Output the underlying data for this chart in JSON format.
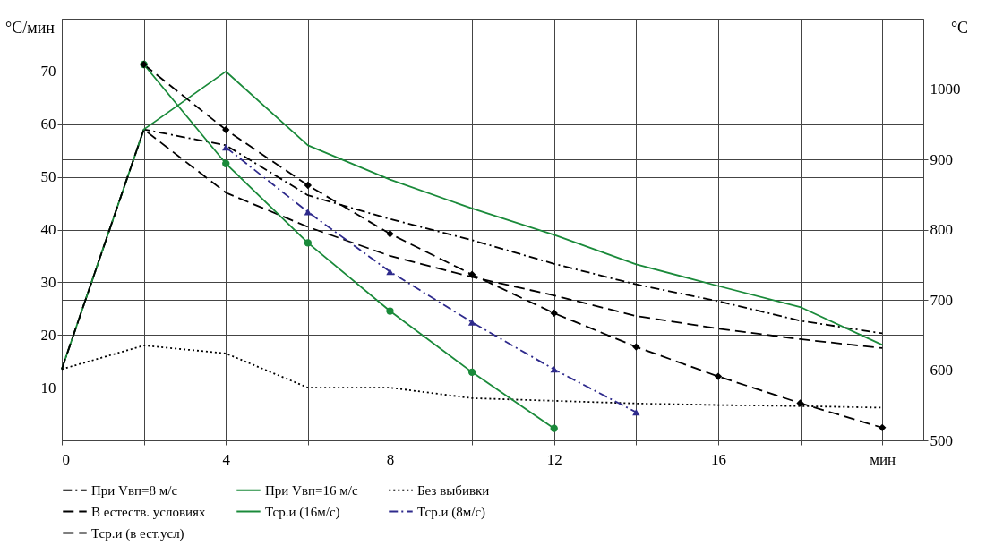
{
  "chart_data": {
    "type": "line",
    "ylabel": "°C/мин",
    "y2label": "°C",
    "xlim": [
      0,
      21
    ],
    "xticks": [
      0,
      {
        "value": 2,
        "label": null
      },
      4,
      {
        "value": 6,
        "label": null
      },
      8,
      {
        "value": 10,
        "label": null
      },
      12,
      {
        "value": 14,
        "label": null
      },
      16,
      {
        "value": 18,
        "label": null
      },
      {
        "value": 20,
        "label": "мин"
      }
    ],
    "ylim": [
      0,
      80
    ],
    "yticks": [
      10,
      20,
      30,
      40,
      50,
      60,
      70
    ],
    "y2lim": [
      500,
      1100
    ],
    "y2ticks": [
      500,
      600,
      700,
      800,
      900,
      1000
    ],
    "grid": true,
    "legend": "bottom",
    "series": [
      {
        "name": "При Vвп=8 м/с",
        "color": "#000000",
        "line_style": "dashdot",
        "x": [
          0,
          2,
          4,
          6,
          8,
          10,
          12,
          14,
          16,
          18,
          20
        ],
        "values": [
          13.5,
          59,
          56,
          46.5,
          42,
          38,
          33.5,
          29.6,
          26.4,
          22.7,
          20.3
        ]
      },
      {
        "name": "При Vвп=16 м/с",
        "color": "#1a8a3a",
        "line_style": "solid",
        "x": [
          0,
          2,
          4,
          6,
          8,
          10,
          12,
          14,
          16,
          18,
          20
        ],
        "values": [
          13.5,
          59,
          70,
          56,
          49.5,
          44,
          39,
          33.4,
          29.3,
          25.3,
          18.1
        ]
      },
      {
        "name": "Без выбивки",
        "color": "#000000",
        "line_style": "dotted",
        "x": [
          0,
          2,
          4,
          6,
          8,
          10,
          12,
          14,
          16,
          18,
          20
        ],
        "values": [
          13.5,
          18,
          16.5,
          10,
          10,
          8,
          7.5,
          7,
          6.7,
          6.5,
          6.2
        ]
      },
      {
        "name": "В естеств. условиях",
        "color": "#000000",
        "line_style": "dashed",
        "x": [
          0,
          2,
          4,
          6,
          8,
          10,
          12,
          14,
          16,
          18,
          20
        ],
        "values": [
          13.5,
          59,
          47,
          40.5,
          35,
          31,
          27.5,
          23.6,
          21.2,
          19.2,
          17.5
        ]
      },
      {
        "name": "Тср.и (16м/с)",
        "color": "#1a8a3a",
        "line_style": "solid",
        "marker": "circle",
        "axis": "y2",
        "x": [
          2,
          4,
          6,
          8,
          10,
          12
        ],
        "values": [
          1035,
          894,
          781,
          684,
          597,
          517
        ]
      },
      {
        "name": "Тср.и (8м/с)",
        "color": "#2e2a8c",
        "line_style": "dashdot",
        "marker": "triangle",
        "axis": "y2",
        "x": [
          4,
          6,
          8,
          10,
          12,
          14
        ],
        "values": [
          917,
          825,
          740,
          668,
          601,
          540
        ]
      },
      {
        "name": "Тср.и (в ест.усл)",
        "color": "#000000",
        "line_style": "dashed",
        "marker": "diamond",
        "axis": "y2",
        "x": [
          2,
          4,
          6,
          8,
          10,
          12,
          14,
          16,
          18,
          20
        ],
        "values": [
          1035,
          942,
          863,
          794,
          736,
          681,
          633,
          591,
          553,
          518
        ]
      }
    ]
  }
}
